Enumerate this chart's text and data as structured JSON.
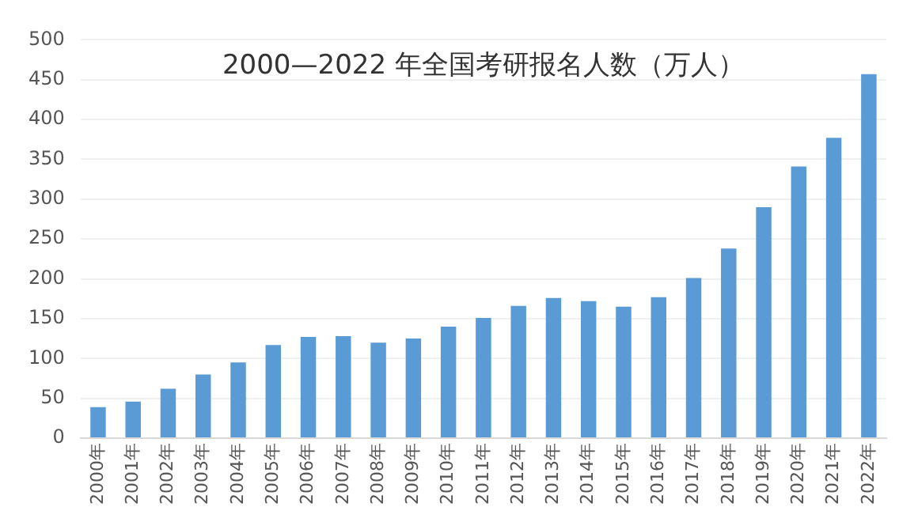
{
  "chart_data": {
    "type": "bar",
    "title": "2000—2022 年全国考研报名人数（万人）",
    "categories": [
      "2000年",
      "2001年",
      "2002年",
      "2003年",
      "2004年",
      "2005年",
      "2006年",
      "2007年",
      "2008年",
      "2009年",
      "2010年",
      "2011年",
      "2012年",
      "2013年",
      "2014年",
      "2015年",
      "2016年",
      "2017年",
      "2018年",
      "2019年",
      "2020年",
      "2021年",
      "2022年"
    ],
    "values": [
      39,
      46,
      62,
      80,
      95,
      117,
      127,
      128,
      120,
      125,
      140,
      151,
      166,
      176,
      172,
      165,
      177,
      201,
      238,
      290,
      341,
      377,
      457
    ],
    "color": "#5b9bd5",
    "ylim": [
      0,
      500
    ],
    "yticks": [
      0,
      50,
      100,
      150,
      200,
      250,
      300,
      350,
      400,
      450,
      500
    ],
    "grid": "y"
  }
}
